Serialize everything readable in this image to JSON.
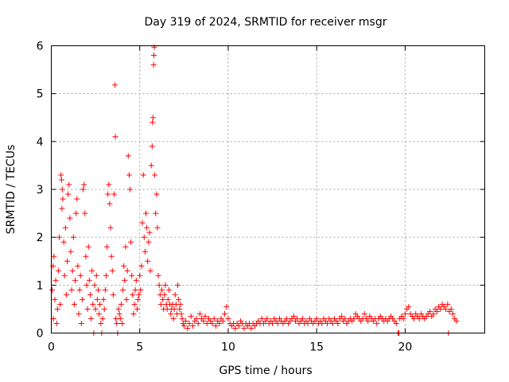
{
  "chart_data": {
    "type": "scatter",
    "title": "Day 319 of 2024, SRMTID for receiver msgr",
    "xlabel": "GPS time / hours",
    "ylabel": "SRMTID / TECUs",
    "xlim": [
      0,
      24.5
    ],
    "ylim": [
      0,
      6
    ],
    "grid": true,
    "marker": "+",
    "color": "#ff0000",
    "x_ticks": [
      0,
      5,
      10,
      15,
      20
    ],
    "x_tick_labels": [
      "0",
      "5",
      "10",
      "15",
      "20"
    ],
    "y_ticks": [
      0,
      1,
      2,
      3,
      4,
      5,
      6
    ],
    "y_tick_labels": [
      "0",
      "1",
      "2",
      "3",
      "4",
      "5",
      "6"
    ],
    "series": [
      {
        "name": "SRMTID",
        "points": [
          [
            0.05,
            0.9
          ],
          [
            0.1,
            1.4
          ],
          [
            0.12,
            0.3
          ],
          [
            0.15,
            1.6
          ],
          [
            0.2,
            0.7
          ],
          [
            0.25,
            1.1
          ],
          [
            0.3,
            0.2
          ],
          [
            0.35,
            0.5
          ],
          [
            0.4,
            1.3
          ],
          [
            0.45,
            2.0
          ],
          [
            0.5,
            0.6
          ],
          [
            0.55,
            3.3
          ],
          [
            0.58,
            3.2
          ],
          [
            0.6,
            2.6
          ],
          [
            0.62,
            3.0
          ],
          [
            0.65,
            2.8
          ],
          [
            0.7,
            1.9
          ],
          [
            0.75,
            1.2
          ],
          [
            0.8,
            2.2
          ],
          [
            0.85,
            0.8
          ],
          [
            0.9,
            1.5
          ],
          [
            0.95,
            2.9
          ],
          [
            1.0,
            3.1
          ],
          [
            1.05,
            2.4
          ],
          [
            1.1,
            1.7
          ],
          [
            1.15,
            0.9
          ],
          [
            1.2,
            1.3
          ],
          [
            1.25,
            2.0
          ],
          [
            1.3,
            0.6
          ],
          [
            1.35,
            1.1
          ],
          [
            1.4,
            2.5
          ],
          [
            1.45,
            2.8
          ],
          [
            1.5,
            1.4
          ],
          [
            1.55,
            0.4
          ],
          [
            1.6,
            0.9
          ],
          [
            1.65,
            1.2
          ],
          [
            1.7,
            0.2
          ],
          [
            1.75,
            0.7
          ],
          [
            1.8,
            3.0
          ],
          [
            1.85,
            3.1
          ],
          [
            1.9,
            2.5
          ],
          [
            1.95,
            1.6
          ],
          [
            2.0,
            1.0
          ],
          [
            2.05,
            0.5
          ],
          [
            2.1,
            1.8
          ],
          [
            2.15,
            1.1
          ],
          [
            2.2,
            0.8
          ],
          [
            2.25,
            0.3
          ],
          [
            2.3,
            1.3
          ],
          [
            2.35,
            0.6
          ],
          [
            2.4,
            0.0
          ],
          [
            2.45,
            1.0
          ],
          [
            2.5,
            0.5
          ],
          [
            2.55,
            1.2
          ],
          [
            2.6,
            0.7
          ],
          [
            2.65,
            0.9
          ],
          [
            2.7,
            0.4
          ],
          [
            2.75,
            0.6
          ],
          [
            2.8,
            0.2
          ],
          [
            2.85,
            0.0
          ],
          [
            2.9,
            0.3
          ],
          [
            2.95,
            0.7
          ],
          [
            3.0,
            0.5
          ],
          [
            3.05,
            0.9
          ],
          [
            3.1,
            1.2
          ],
          [
            3.15,
            1.8
          ],
          [
            3.2,
            2.9
          ],
          [
            3.25,
            3.1
          ],
          [
            3.3,
            2.7
          ],
          [
            3.35,
            2.2
          ],
          [
            3.4,
            1.6
          ],
          [
            3.45,
            1.3
          ],
          [
            3.5,
            0.8
          ],
          [
            3.55,
            2.9
          ],
          [
            3.6,
            5.18
          ],
          [
            3.62,
            4.1
          ],
          [
            3.65,
            0.3
          ],
          [
            3.7,
            0.2
          ],
          [
            3.75,
            0.0
          ],
          [
            3.8,
            0.5
          ],
          [
            3.85,
            0.4
          ],
          [
            3.9,
            0.3
          ],
          [
            3.95,
            0.6
          ],
          [
            4.0,
            0.2
          ],
          [
            4.05,
            0.9
          ],
          [
            4.1,
            1.4
          ],
          [
            4.15,
            1.1
          ],
          [
            4.2,
            1.8
          ],
          [
            4.25,
            0.7
          ],
          [
            4.3,
            1.3
          ],
          [
            4.35,
            3.7
          ],
          [
            4.4,
            3.3
          ],
          [
            4.45,
            3.0
          ],
          [
            4.5,
            1.9
          ],
          [
            4.55,
            1.2
          ],
          [
            4.6,
            0.8
          ],
          [
            4.65,
            0.4
          ],
          [
            4.7,
            0.6
          ],
          [
            4.75,
            0.9
          ],
          [
            4.8,
            1.1
          ],
          [
            4.85,
            0.5
          ],
          [
            4.9,
            0.7
          ],
          [
            4.95,
            0.8
          ],
          [
            5.0,
            1.2
          ],
          [
            5.05,
            0.9
          ],
          [
            5.1,
            1.4
          ],
          [
            5.15,
            2.3
          ],
          [
            5.2,
            3.3
          ],
          [
            5.25,
            2.0
          ],
          [
            5.3,
            1.7
          ],
          [
            5.35,
            2.5
          ],
          [
            5.4,
            2.2
          ],
          [
            5.45,
            1.5
          ],
          [
            5.5,
            1.9
          ],
          [
            5.55,
            2.1
          ],
          [
            5.6,
            1.3
          ],
          [
            5.65,
            3.5
          ],
          [
            5.7,
            3.9
          ],
          [
            5.72,
            4.4
          ],
          [
            5.75,
            4.5
          ],
          [
            5.78,
            5.6
          ],
          [
            5.8,
            5.8
          ],
          [
            5.82,
            5.97
          ],
          [
            5.85,
            3.3
          ],
          [
            5.9,
            2.5
          ],
          [
            5.95,
            2.9
          ],
          [
            6.0,
            2.2
          ],
          [
            6.05,
            1.2
          ],
          [
            6.1,
            1.0
          ],
          [
            6.15,
            0.8
          ],
          [
            6.2,
            0.6
          ],
          [
            6.25,
            0.9
          ],
          [
            6.3,
            0.7
          ],
          [
            6.35,
            0.5
          ],
          [
            6.4,
            0.8
          ],
          [
            6.45,
            1.0
          ],
          [
            6.5,
            0.6
          ],
          [
            6.55,
            0.5
          ],
          [
            6.6,
            0.7
          ],
          [
            6.65,
            0.9
          ],
          [
            6.7,
            0.6
          ],
          [
            6.75,
            0.4
          ],
          [
            6.8,
            0.5
          ],
          [
            6.85,
            0.6
          ],
          [
            6.9,
            0.3
          ],
          [
            6.95,
            0.5
          ],
          [
            7.0,
            0.8
          ],
          [
            7.05,
            0.6
          ],
          [
            7.1,
            0.4
          ],
          [
            7.15,
            1.0
          ],
          [
            7.2,
            0.7
          ],
          [
            7.25,
            0.5
          ],
          [
            7.3,
            0.6
          ],
          [
            7.35,
            0.4
          ],
          [
            7.4,
            0.3
          ],
          [
            7.45,
            0.2
          ],
          [
            7.5,
            0.15
          ],
          [
            7.6,
            0.25
          ],
          [
            7.7,
            0.1
          ],
          [
            7.8,
            0.2
          ],
          [
            7.9,
            0.35
          ],
          [
            8.0,
            0.15
          ],
          [
            8.1,
            0.25
          ],
          [
            8.2,
            0.3
          ],
          [
            8.3,
            0.2
          ],
          [
            8.4,
            0.4
          ],
          [
            8.5,
            0.3
          ],
          [
            8.6,
            0.25
          ],
          [
            8.7,
            0.35
          ],
          [
            8.8,
            0.2
          ],
          [
            8.9,
            0.3
          ],
          [
            9.0,
            0.25
          ],
          [
            9.1,
            0.2
          ],
          [
            9.2,
            0.3
          ],
          [
            9.3,
            0.15
          ],
          [
            9.4,
            0.25
          ],
          [
            9.5,
            0.2
          ],
          [
            9.6,
            0.3
          ],
          [
            9.7,
            0.25
          ],
          [
            9.8,
            0.4
          ],
          [
            9.9,
            0.55
          ],
          [
            10.0,
            0.3
          ],
          [
            10.1,
            0.2
          ],
          [
            10.2,
            0.15
          ],
          [
            10.3,
            0.2
          ],
          [
            10.4,
            0.1
          ],
          [
            10.5,
            0.2
          ],
          [
            10.6,
            0.15
          ],
          [
            10.7,
            0.25
          ],
          [
            10.8,
            0.2
          ],
          [
            10.9,
            0.1
          ],
          [
            11.0,
            0.2
          ],
          [
            11.1,
            0.15
          ],
          [
            11.2,
            0.2
          ],
          [
            11.3,
            0.1
          ],
          [
            11.4,
            0.2
          ],
          [
            11.5,
            0.15
          ],
          [
            11.6,
            0.2
          ],
          [
            11.7,
            0.25
          ],
          [
            11.8,
            0.2
          ],
          [
            11.9,
            0.3
          ],
          [
            12.0,
            0.2
          ],
          [
            12.1,
            0.25
          ],
          [
            12.2,
            0.3
          ],
          [
            12.3,
            0.2
          ],
          [
            12.4,
            0.25
          ],
          [
            12.5,
            0.2
          ],
          [
            12.6,
            0.3
          ],
          [
            12.7,
            0.25
          ],
          [
            12.8,
            0.2
          ],
          [
            12.9,
            0.3
          ],
          [
            13.0,
            0.25
          ],
          [
            13.1,
            0.2
          ],
          [
            13.2,
            0.25
          ],
          [
            13.3,
            0.3
          ],
          [
            13.4,
            0.2
          ],
          [
            13.5,
            0.25
          ],
          [
            13.6,
            0.3
          ],
          [
            13.7,
            0.35
          ],
          [
            13.8,
            0.25
          ],
          [
            13.9,
            0.3
          ],
          [
            14.0,
            0.2
          ],
          [
            14.1,
            0.25
          ],
          [
            14.2,
            0.3
          ],
          [
            14.3,
            0.2
          ],
          [
            14.4,
            0.25
          ],
          [
            14.5,
            0.2
          ],
          [
            14.6,
            0.3
          ],
          [
            14.7,
            0.25
          ],
          [
            14.8,
            0.2
          ],
          [
            14.9,
            0.25
          ],
          [
            15.0,
            0.3
          ],
          [
            15.1,
            0.2
          ],
          [
            15.2,
            0.25
          ],
          [
            15.3,
            0.2
          ],
          [
            15.4,
            0.3
          ],
          [
            15.5,
            0.25
          ],
          [
            15.6,
            0.2
          ],
          [
            15.7,
            0.3
          ],
          [
            15.8,
            0.25
          ],
          [
            15.9,
            0.2
          ],
          [
            16.0,
            0.3
          ],
          [
            16.1,
            0.25
          ],
          [
            16.2,
            0.2
          ],
          [
            16.3,
            0.3
          ],
          [
            16.4,
            0.35
          ],
          [
            16.5,
            0.25
          ],
          [
            16.6,
            0.3
          ],
          [
            16.7,
            0.2
          ],
          [
            16.8,
            0.25
          ],
          [
            16.9,
            0.3
          ],
          [
            17.0,
            0.25
          ],
          [
            17.1,
            0.3
          ],
          [
            17.2,
            0.4
          ],
          [
            17.3,
            0.35
          ],
          [
            17.4,
            0.3
          ],
          [
            17.5,
            0.25
          ],
          [
            17.6,
            0.3
          ],
          [
            17.7,
            0.4
          ],
          [
            17.8,
            0.3
          ],
          [
            17.9,
            0.25
          ],
          [
            18.0,
            0.35
          ],
          [
            18.1,
            0.3
          ],
          [
            18.2,
            0.25
          ],
          [
            18.3,
            0.3
          ],
          [
            18.4,
            0.2
          ],
          [
            18.5,
            0.3
          ],
          [
            18.6,
            0.35
          ],
          [
            18.7,
            0.3
          ],
          [
            18.8,
            0.25
          ],
          [
            18.9,
            0.3
          ],
          [
            19.0,
            0.25
          ],
          [
            19.1,
            0.3
          ],
          [
            19.2,
            0.35
          ],
          [
            19.3,
            0.3
          ],
          [
            19.4,
            0.25
          ],
          [
            19.5,
            0.2
          ],
          [
            19.6,
            0.0
          ],
          [
            19.65,
            0.0
          ],
          [
            19.7,
            0.3
          ],
          [
            19.8,
            0.35
          ],
          [
            19.9,
            0.3
          ],
          [
            20.0,
            0.4
          ],
          [
            20.1,
            0.5
          ],
          [
            20.2,
            0.55
          ],
          [
            20.3,
            0.4
          ],
          [
            20.4,
            0.35
          ],
          [
            20.5,
            0.3
          ],
          [
            20.6,
            0.4
          ],
          [
            20.7,
            0.35
          ],
          [
            20.8,
            0.3
          ],
          [
            20.9,
            0.4
          ],
          [
            21.0,
            0.35
          ],
          [
            21.1,
            0.3
          ],
          [
            21.2,
            0.35
          ],
          [
            21.3,
            0.4
          ],
          [
            21.4,
            0.45
          ],
          [
            21.5,
            0.35
          ],
          [
            21.6,
            0.4
          ],
          [
            21.7,
            0.5
          ],
          [
            21.8,
            0.45
          ],
          [
            21.9,
            0.55
          ],
          [
            22.0,
            0.5
          ],
          [
            22.1,
            0.6
          ],
          [
            22.2,
            0.55
          ],
          [
            22.3,
            0.5
          ],
          [
            22.4,
            0.6
          ],
          [
            22.45,
            0.0
          ],
          [
            22.5,
            0.45
          ],
          [
            22.6,
            0.5
          ],
          [
            22.7,
            0.4
          ],
          [
            22.8,
            0.3
          ],
          [
            22.9,
            0.25
          ]
        ]
      }
    ]
  }
}
